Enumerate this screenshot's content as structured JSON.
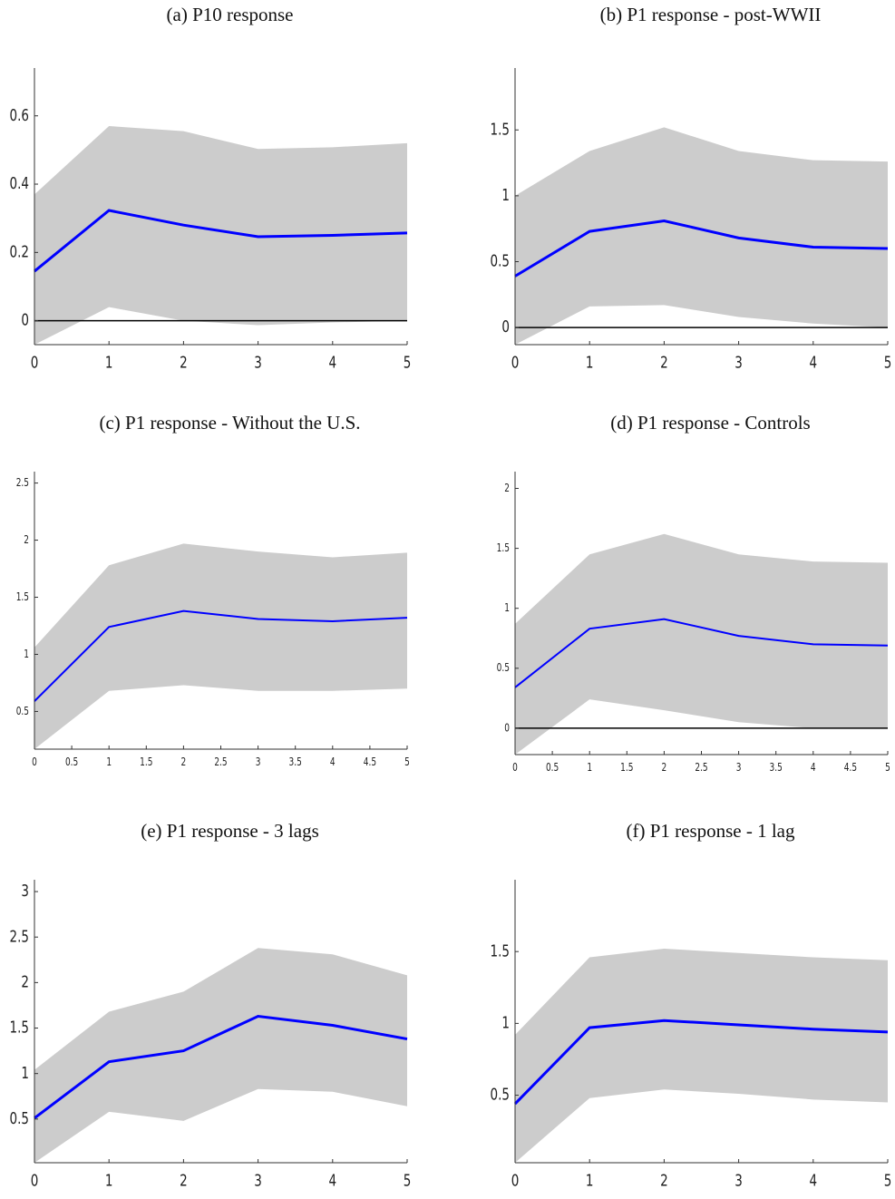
{
  "chart_data": [
    {
      "type": "line",
      "title": "(a) P10 response",
      "x": [
        0,
        1,
        2,
        3,
        4,
        5
      ],
      "xlim": [
        0,
        5
      ],
      "xticks": [
        0,
        1,
        2,
        3,
        4,
        5
      ],
      "ylim": [
        -0.07,
        0.74
      ],
      "yticks": [
        0,
        0.2,
        0.4,
        0.6
      ],
      "zero_line": true,
      "color": "#0000ff",
      "band_color": "#cccccc",
      "values": [
        0.145,
        0.323,
        0.28,
        0.246,
        0.25,
        0.257
      ],
      "upper": [
        0.37,
        0.57,
        0.555,
        0.503,
        0.508,
        0.52
      ],
      "lower": [
        -0.07,
        0.04,
        0.0,
        -0.013,
        -0.005,
        0.0
      ]
    },
    {
      "type": "line",
      "title": "(b) P1 response - post-WWII",
      "x": [
        0,
        1,
        2,
        3,
        4,
        5
      ],
      "xlim": [
        0,
        5
      ],
      "xticks": [
        0,
        1,
        2,
        3,
        4,
        5
      ],
      "ylim": [
        -0.13,
        1.97
      ],
      "yticks": [
        0,
        0.5,
        1,
        1.5
      ],
      "zero_line": true,
      "color": "#0000ff",
      "band_color": "#cccccc",
      "values": [
        0.39,
        0.73,
        0.81,
        0.68,
        0.61,
        0.6
      ],
      "upper": [
        1.0,
        1.34,
        1.52,
        1.34,
        1.27,
        1.26
      ],
      "lower": [
        -0.13,
        0.16,
        0.17,
        0.08,
        0.03,
        0.0
      ]
    },
    {
      "type": "line",
      "title": "(c) P1 response - Without the U.S.",
      "x": [
        0,
        1,
        2,
        3,
        4,
        5
      ],
      "xlim": [
        0,
        5
      ],
      "xticks": [
        0,
        0.5,
        1,
        1.5,
        2,
        2.5,
        3,
        3.5,
        4,
        4.5,
        5
      ],
      "ylim": [
        0.17,
        2.6
      ],
      "yticks": [
        0.5,
        1,
        1.5,
        2,
        2.5
      ],
      "zero_line": false,
      "color": "#0000ff",
      "band_color": "#cccccc",
      "values": [
        0.59,
        1.24,
        1.38,
        1.31,
        1.29,
        1.32
      ],
      "upper": [
        1.06,
        1.78,
        1.97,
        1.9,
        1.85,
        1.89
      ],
      "lower": [
        0.17,
        0.68,
        0.73,
        0.68,
        0.68,
        0.7
      ]
    },
    {
      "type": "line",
      "title": "(d) P1 response - Controls",
      "x": [
        0,
        1,
        2,
        3,
        4,
        5
      ],
      "xlim": [
        0,
        5
      ],
      "xticks": [
        0,
        0.5,
        1,
        1.5,
        2,
        2.5,
        3,
        3.5,
        4,
        4.5,
        5
      ],
      "ylim": [
        -0.22,
        2.14
      ],
      "yticks": [
        0,
        0.5,
        1,
        1.5,
        2
      ],
      "zero_line": true,
      "color": "#0000ff",
      "band_color": "#cccccc",
      "values": [
        0.34,
        0.83,
        0.91,
        0.77,
        0.7,
        0.69
      ],
      "upper": [
        0.87,
        1.45,
        1.62,
        1.45,
        1.39,
        1.38
      ],
      "lower": [
        -0.22,
        0.24,
        0.15,
        0.05,
        0.0,
        0.0
      ]
    },
    {
      "type": "line",
      "title": "(e) P1 response - 3 lags",
      "x": [
        0,
        1,
        2,
        3,
        4,
        5
      ],
      "xlim": [
        0,
        5
      ],
      "xticks": [
        0,
        1,
        2,
        3,
        4,
        5
      ],
      "ylim": [
        0.02,
        3.13
      ],
      "yticks": [
        0.5,
        1,
        1.5,
        2,
        2.5,
        3
      ],
      "zero_line": false,
      "color": "#0000ff",
      "band_color": "#cccccc",
      "values": [
        0.51,
        1.13,
        1.25,
        1.63,
        1.53,
        1.38
      ],
      "upper": [
        1.04,
        1.68,
        1.9,
        2.38,
        2.31,
        2.08
      ],
      "lower": [
        0.02,
        0.58,
        0.48,
        0.83,
        0.8,
        0.64
      ]
    },
    {
      "type": "line",
      "title": "(f) P1 response - 1 lag",
      "x": [
        0,
        1,
        2,
        3,
        4,
        5
      ],
      "xlim": [
        0,
        5
      ],
      "xticks": [
        0,
        1,
        2,
        3,
        4,
        5
      ],
      "ylim": [
        0.03,
        2.0
      ],
      "yticks": [
        0.5,
        1,
        1.5
      ],
      "zero_line": false,
      "color": "#0000ff",
      "band_color": "#cccccc",
      "values": [
        0.44,
        0.97,
        1.02,
        0.99,
        0.96,
        0.94
      ],
      "upper": [
        0.92,
        1.46,
        1.52,
        1.49,
        1.46,
        1.44
      ],
      "lower": [
        0.03,
        0.48,
        0.54,
        0.51,
        0.47,
        0.45
      ]
    }
  ]
}
